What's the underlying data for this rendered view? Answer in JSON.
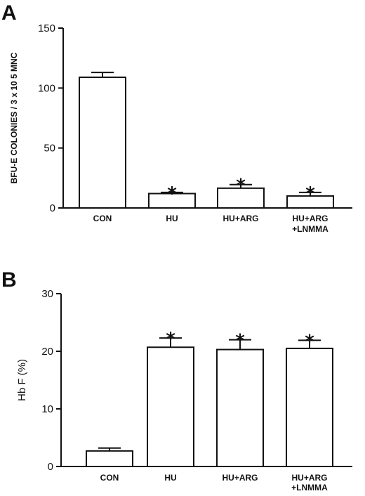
{
  "chart_data": [
    {
      "panel": "A",
      "type": "bar",
      "ylabel": "BFU-E COLONIES / 3 x 10 5 MNC",
      "ylim": [
        0,
        150
      ],
      "yticks": [
        "0",
        "50",
        "100",
        "150"
      ],
      "categories": [
        [
          "CON"
        ],
        [
          "HU"
        ],
        [
          "HU+ARG"
        ],
        [
          "HU+ARG",
          "+LNMMA"
        ]
      ],
      "values": [
        109,
        12,
        16.5,
        10
      ],
      "errors": [
        4,
        1,
        3,
        3
      ],
      "significance": [
        "",
        "*",
        "*",
        "*"
      ]
    },
    {
      "panel": "B",
      "type": "bar",
      "ylabel": "Hb F (%)",
      "ylim": [
        0,
        30
      ],
      "yticks": [
        "0",
        "10",
        "20",
        "30"
      ],
      "categories": [
        [
          "CON"
        ],
        [
          "HU"
        ],
        [
          "HU+ARG"
        ],
        [
          "HU+ARG",
          "+LNMMA"
        ]
      ],
      "values": [
        2.7,
        20.7,
        20.3,
        20.5
      ],
      "errors": [
        0.5,
        1.6,
        1.7,
        1.4
      ],
      "significance": [
        "",
        "*",
        "*",
        "*"
      ]
    }
  ]
}
